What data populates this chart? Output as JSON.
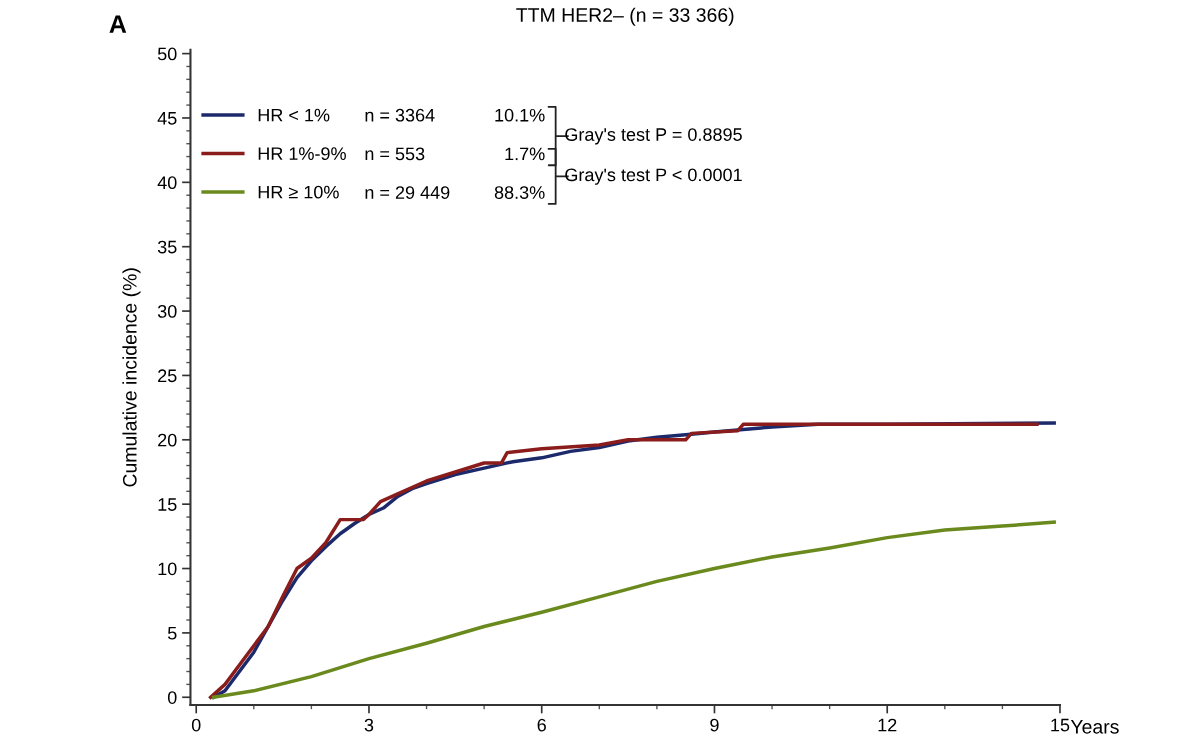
{
  "chart_data": {
    "type": "line",
    "title": "TTM HER2– (n = 33 366)",
    "xlabel": "Years",
    "ylabel": "Cumulative incidence (%)",
    "xlim": [
      -0.1,
      15
    ],
    "xticks": [
      0,
      3,
      6,
      9,
      12,
      15
    ],
    "ylim": [
      -0.6,
      50.3
    ],
    "yticks": [
      0,
      5,
      10,
      15,
      20,
      25,
      30,
      35,
      40,
      45,
      50
    ],
    "grid": false,
    "legend": "top left",
    "marker": "none",
    "line_style": "solid",
    "annotations": [
      "A",
      "n = 3364",
      "10.1%",
      "n = 553",
      "1.7%",
      "n = 29 449",
      "88.3%",
      "Gray's test P = 0.8895",
      "Gray's test P < 0.0001"
    ],
    "series": [
      {
        "name": "HR < 1%",
        "color": "#1c2a6b",
        "x": [
          0.3,
          0.5,
          0.75,
          1.0,
          1.25,
          1.5,
          1.75,
          2.0,
          2.25,
          2.5,
          2.75,
          3.0,
          3.25,
          3.5,
          3.75,
          4.0,
          4.5,
          5.0,
          5.5,
          6.0,
          6.5,
          7.0,
          7.5,
          8.0,
          8.5,
          9.0,
          9.5,
          10.0,
          10.8,
          12.0,
          14.9
        ],
        "values": [
          0,
          0.5,
          2,
          3.5,
          5.5,
          7.5,
          9.3,
          10.6,
          11.7,
          12.7,
          13.5,
          14.2,
          14.7,
          15.6,
          16.2,
          16.6,
          17.3,
          17.8,
          18.3,
          18.6,
          19.1,
          19.4,
          19.9,
          20.2,
          20.4,
          20.6,
          20.8,
          21.0,
          21.2,
          21.2,
          21.3
        ]
      },
      {
        "name": "HR 1%-9%",
        "color": "#8b1c1c",
        "x": [
          0.25,
          0.5,
          0.75,
          1.0,
          1.25,
          1.5,
          1.75,
          2.0,
          2.25,
          2.5,
          2.9,
          3.0,
          3.2,
          3.5,
          4.0,
          4.5,
          5.0,
          5.3,
          5.4,
          6.0,
          7.0,
          7.5,
          8.5,
          8.6,
          9.4,
          9.5,
          14.6
        ],
        "values": [
          0,
          1,
          2.5,
          4,
          5.5,
          7.8,
          10,
          10.8,
          12,
          13.8,
          13.8,
          14.2,
          15.2,
          15.8,
          16.8,
          17.5,
          18.2,
          18.2,
          19,
          19.3,
          19.6,
          20,
          20,
          20.5,
          20.7,
          21.2,
          21.2
        ]
      },
      {
        "name": "HR ≥ 10%",
        "color": "#6b8a1e",
        "x": [
          0.3,
          1,
          2,
          3,
          4,
          5,
          6,
          7,
          8,
          9,
          10,
          11,
          12,
          13,
          14,
          14.9
        ],
        "values": [
          0,
          0.5,
          1.6,
          3.0,
          4.2,
          5.5,
          6.6,
          7.8,
          9.0,
          10.0,
          10.9,
          11.6,
          12.4,
          13.0,
          13.3,
          13.6
        ]
      }
    ]
  }
}
